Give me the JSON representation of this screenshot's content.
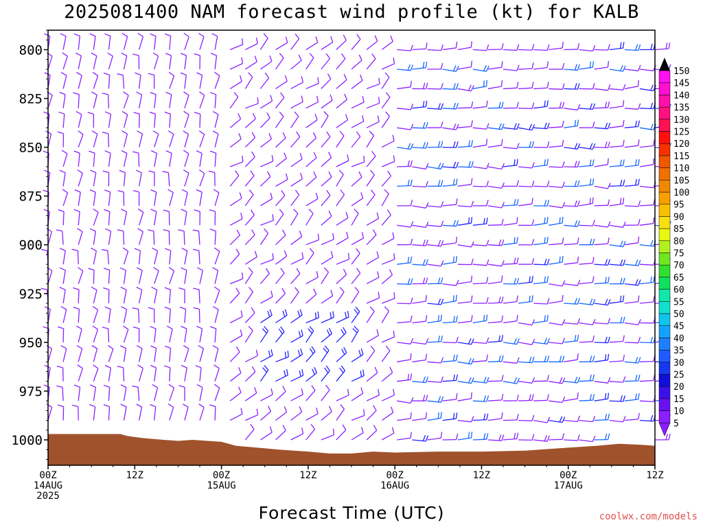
{
  "chart_data": {
    "type": "wind-barb-time-height",
    "title": "2025081400 NAM forecast wind profile (kt) for KALB",
    "xlabel": "Forecast Time (UTC)",
    "ylabel": "",
    "credit": "coolwx.com/models",
    "y_axis": {
      "reversed": true,
      "range": [
        790,
        1013
      ],
      "ticks": [
        "800",
        "825",
        "850",
        "875",
        "900",
        "925",
        "950",
        "975",
        "1000"
      ]
    },
    "x_axis": {
      "range_hours": [
        0,
        84
      ],
      "ticks": [
        {
          "hour": 0,
          "label": "00Z",
          "sub": "14AUG",
          "sub2": "2025"
        },
        {
          "hour": 12,
          "label": "12Z",
          "sub": "",
          "sub2": ""
        },
        {
          "hour": 24,
          "label": "00Z",
          "sub": "15AUG",
          "sub2": ""
        },
        {
          "hour": 36,
          "label": "12Z",
          "sub": "",
          "sub2": ""
        },
        {
          "hour": 48,
          "label": "00Z",
          "sub": "16AUG",
          "sub2": ""
        },
        {
          "hour": 60,
          "label": "12Z",
          "sub": "",
          "sub2": ""
        },
        {
          "hour": 72,
          "label": "00Z",
          "sub": "17AUG",
          "sub2": ""
        },
        {
          "hour": 84,
          "label": "12Z",
          "sub": "",
          "sub2": ""
        }
      ]
    },
    "colorbar": {
      "labels": [
        "5",
        "10",
        "15",
        "20",
        "25",
        "30",
        "35",
        "40",
        "45",
        "50",
        "55",
        "60",
        "65",
        "70",
        "75",
        "80",
        "85",
        "90",
        "95",
        "100",
        "105",
        "110",
        "115",
        "120",
        "125",
        "130",
        "135",
        "140",
        "145",
        "150"
      ],
      "colors": [
        "#8a1fff",
        "#6a10f0",
        "#3a10e8",
        "#1010d8",
        "#1638ee",
        "#1e5cff",
        "#1f80ff",
        "#10a4ff",
        "#10c4f0",
        "#10e0d0",
        "#10e8a8",
        "#10e060",
        "#30e030",
        "#70e820",
        "#b0f020",
        "#e8f810",
        "#f8e010",
        "#f8c000",
        "#f8a000",
        "#f08800",
        "#f07000",
        "#f05800",
        "#f83000",
        "#ff1010",
        "#ff1050",
        "#ff1080",
        "#ff10a8",
        "#ff10d0",
        "#ff10f0"
      ],
      "arrow_top": "#000000",
      "arrow_bottom": "#8a1fff"
    },
    "terrain_color": "#a0522d",
    "barb_colors": {
      "light": "#8a1fff",
      "moderate": "#2020ff",
      "stronger": "#1565ff"
    }
  }
}
